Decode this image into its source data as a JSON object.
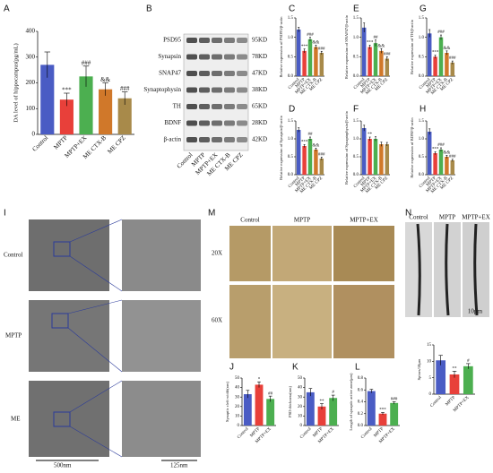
{
  "chart_data": [
    {
      "type": "bar",
      "panel": "A",
      "ylabel": "DA level of hippocampus(pg/mL)",
      "categories": [
        "Control",
        "MPTP",
        "MPTP+EX",
        "ME CTX-B",
        "ME CPZ"
      ],
      "values": [
        270,
        135,
        225,
        175,
        140
      ],
      "errors": [
        50,
        25,
        40,
        25,
        25
      ],
      "colors": [
        "#4a5cc4",
        "#e8403a",
        "#4caf50",
        "#d0782a",
        "#a88a4a"
      ],
      "annotations": [
        null,
        "***",
        "###",
        "&&",
        "###"
      ],
      "ylim": [
        0,
        400
      ],
      "yticks": [
        0,
        100,
        200,
        300,
        400
      ]
    },
    {
      "type": "bar",
      "panel": "C",
      "ylabel": "Relative expression of PSD95/β-actin",
      "categories": [
        "Control",
        "MPTP",
        "MPTP+EX",
        "ME CTX-B",
        "ME CPZ"
      ],
      "values": [
        1.2,
        0.65,
        0.95,
        0.75,
        0.6
      ],
      "errors": [
        0.06,
        0.05,
        0.05,
        0.05,
        0.04
      ],
      "colors": [
        "#4a5cc4",
        "#e8403a",
        "#4caf50",
        "#d0782a",
        "#a88a4a"
      ],
      "annotations": [
        null,
        "***",
        "###",
        "&&",
        "###"
      ],
      "ylim": [
        0,
        1.5
      ],
      "yticks": [
        {
          "value": 0,
          "label": "0.0"
        },
        {
          "value": 0.5,
          "label": "0.5"
        },
        {
          "value": 1,
          "label": "1.0"
        },
        {
          "value": 1.5,
          "label": "1.5"
        }
      ]
    },
    {
      "type": "bar",
      "panel": "E",
      "ylabel": "Relative expression of SNAP47/β-actin",
      "categories": [
        "Control",
        "MPTP",
        "MPTP+EX",
        "ME CTX-B",
        "ME CPZ"
      ],
      "values": [
        1.25,
        0.75,
        0.85,
        0.65,
        0.45
      ],
      "errors": [
        0.12,
        0.05,
        0.08,
        0.06,
        0.05
      ],
      "colors": [
        "#4a5cc4",
        "#e8403a",
        "#4caf50",
        "#d0782a",
        "#a88a4a"
      ],
      "annotations": [
        null,
        "***",
        "##",
        "&&",
        "###"
      ],
      "ylim": [
        0,
        1.5
      ],
      "yticks": [
        {
          "value": 0,
          "label": "0.0"
        },
        {
          "value": 0.5,
          "label": "0.5"
        },
        {
          "value": 1,
          "label": "1.0"
        },
        {
          "value": 1.5,
          "label": "1.5"
        }
      ]
    },
    {
      "type": "bar",
      "panel": "G",
      "ylabel": "Relative expression of TH/β-actin",
      "categories": [
        "Control",
        "MPTP",
        "MPTP+EX",
        "ME CTX-B",
        "ME CPZ"
      ],
      "values": [
        1.1,
        0.5,
        1.0,
        0.6,
        0.35
      ],
      "errors": [
        0.1,
        0.04,
        0.06,
        0.05,
        0.04
      ],
      "colors": [
        "#4a5cc4",
        "#e8403a",
        "#4caf50",
        "#d0782a",
        "#a88a4a"
      ],
      "annotations": [
        null,
        "***",
        "###",
        "&&",
        "###"
      ],
      "ylim": [
        0,
        1.5
      ],
      "yticks": [
        {
          "value": 0,
          "label": "0.0"
        },
        {
          "value": 0.5,
          "label": "0.5"
        },
        {
          "value": 1,
          "label": "1.0"
        },
        {
          "value": 1.5,
          "label": "1.5"
        }
      ]
    },
    {
      "type": "bar",
      "panel": "D",
      "ylabel": "Relative expression of Synapsin/β-actin",
      "categories": [
        "Control",
        "MPTP",
        "MPTP+EX",
        "ME CTX-B",
        "ME CPZ"
      ],
      "values": [
        1.25,
        0.8,
        1.0,
        0.7,
        0.45
      ],
      "errors": [
        0.06,
        0.04,
        0.05,
        0.04,
        0.04
      ],
      "colors": [
        "#4a5cc4",
        "#e8403a",
        "#4caf50",
        "#d0782a",
        "#a88a4a"
      ],
      "annotations": [
        null,
        "***",
        "##",
        "&&",
        "###"
      ],
      "ylim": [
        0,
        1.5
      ],
      "yticks": [
        {
          "value": 0,
          "label": "0.0"
        },
        {
          "value": 0.5,
          "label": "0.5"
        },
        {
          "value": 1,
          "label": "1.0"
        },
        {
          "value": 1.5,
          "label": "1.5"
        }
      ]
    },
    {
      "type": "bar",
      "panel": "F",
      "ylabel": "Relative expression of Synaptophysin/β-actin",
      "categories": [
        "Control",
        "MPTP",
        "MPTP+EX",
        "ME CTX-B",
        "ME CPZ"
      ],
      "values": [
        1.3,
        1.0,
        1.0,
        0.85,
        0.85
      ],
      "errors": [
        0.08,
        0.05,
        0.06,
        0.06,
        0.05
      ],
      "colors": [
        "#4a5cc4",
        "#e8403a",
        "#4caf50",
        "#d0782a",
        "#a88a4a"
      ],
      "annotations": [
        null,
        "**",
        null,
        null,
        null
      ],
      "ylim": [
        0,
        1.5
      ],
      "yticks": [
        {
          "value": 0,
          "label": "0.0"
        },
        {
          "value": 0.5,
          "label": "0.5"
        },
        {
          "value": 1,
          "label": "1.0"
        },
        {
          "value": 1.5,
          "label": "1.5"
        }
      ]
    },
    {
      "type": "bar",
      "panel": "H",
      "ylabel": "Relative expression of BDNF/β-actin",
      "categories": [
        "Control",
        "MPTP",
        "MPTP+EX",
        "ME CTX-B",
        "ME CPZ"
      ],
      "values": [
        1.2,
        0.6,
        0.7,
        0.5,
        0.4
      ],
      "errors": [
        0.08,
        0.04,
        0.05,
        0.04,
        0.03
      ],
      "colors": [
        "#4a5cc4",
        "#e8403a",
        "#4caf50",
        "#d0782a",
        "#a88a4a"
      ],
      "annotations": [
        null,
        "***",
        "###",
        "&&",
        "###"
      ],
      "ylim": [
        0,
        1.5
      ],
      "yticks": [
        {
          "value": 0,
          "label": "0.0"
        },
        {
          "value": 0.5,
          "label": "0.5"
        },
        {
          "value": 1,
          "label": "1.0"
        },
        {
          "value": 1.5,
          "label": "1.5"
        }
      ]
    },
    {
      "type": "bar",
      "panel": "J",
      "ylabel": "Synaptic cleft width(nm)",
      "categories": [
        "Control",
        "MPTP",
        "MPTP+EX"
      ],
      "values": [
        33,
        43,
        28
      ],
      "errors": [
        4,
        3,
        3
      ],
      "colors": [
        "#4a5cc4",
        "#e8403a",
        "#4caf50"
      ],
      "annotations": [
        null,
        "*",
        "##"
      ],
      "ylim": [
        0,
        50
      ],
      "yticks": [
        0,
        10,
        20,
        30,
        40,
        50
      ]
    },
    {
      "type": "bar",
      "panel": "K",
      "ylabel": "PSD thickness(nm)",
      "categories": [
        "Control",
        "MPTP",
        "MPTP+EX"
      ],
      "values": [
        35,
        20,
        29
      ],
      "errors": [
        4,
        3,
        3
      ],
      "colors": [
        "#4a5cc4",
        "#e8403a",
        "#4caf50"
      ],
      "annotations": [
        null,
        "**",
        "#"
      ],
      "ylim": [
        0,
        50
      ],
      "yticks": [
        0,
        10,
        20,
        30,
        40,
        50
      ]
    },
    {
      "type": "bar",
      "panel": "L",
      "ylabel": "Length of synaptic active zone(μm)",
      "categories": [
        "Control",
        "MPTP",
        "MPTP+EX"
      ],
      "values": [
        0.58,
        0.2,
        0.38
      ],
      "errors": [
        0.03,
        0.02,
        0.02
      ],
      "colors": [
        "#4a5cc4",
        "#e8403a",
        "#4caf50"
      ],
      "annotations": [
        null,
        "***",
        "###"
      ],
      "ylim": [
        0,
        0.8
      ],
      "yticks": [
        {
          "value": 0,
          "label": "0.0"
        },
        {
          "value": 0.2,
          "label": "0.2"
        },
        {
          "value": 0.4,
          "label": "0.4"
        },
        {
          "value": 0.6,
          "label": "0.6"
        },
        {
          "value": 0.8,
          "label": "0.8"
        }
      ]
    },
    {
      "type": "bar",
      "ylabel": "Spines/10μm",
      "categories": [
        "Control",
        "MPTP",
        "MPTP+EX"
      ],
      "values": [
        10.3,
        6,
        8.5
      ],
      "errors": [
        1.5,
        1,
        0.8
      ],
      "colors": [
        "#4a5cc4",
        "#e8403a",
        "#4caf50"
      ],
      "annotations": [
        null,
        "**",
        "#"
      ],
      "ylim": [
        0,
        15
      ],
      "yticks": [
        0,
        5,
        10,
        15
      ]
    }
  ],
  "blot": {
    "panel": "B",
    "proteins": [
      "PSD95",
      "Synapsin",
      "SNAP47",
      "Synaptophysin",
      "TH",
      "BDNF",
      "β-actin"
    ],
    "sizes": [
      "95KD",
      "78KD",
      "47KD",
      "38KD",
      "65KD",
      "28KD",
      "42KD"
    ],
    "lanes": [
      "Control",
      "MPTP",
      "MPTP+EX",
      "ME CTX-B",
      "ME CPZ"
    ]
  },
  "em": {
    "panel": "I",
    "rows": [
      "Control",
      "MPTP",
      "ME"
    ],
    "scale_left": "500nm",
    "scale_right": "125nm"
  },
  "golgi": {
    "panel": "M",
    "columns": [
      "Control",
      "MPTP",
      "MPTP+EX"
    ],
    "rows": [
      "20X",
      "60X"
    ]
  },
  "spines": {
    "panel": "N",
    "columns": [
      "Control",
      "MPTP",
      "MPTP+EX"
    ],
    "scale": "10μm"
  }
}
